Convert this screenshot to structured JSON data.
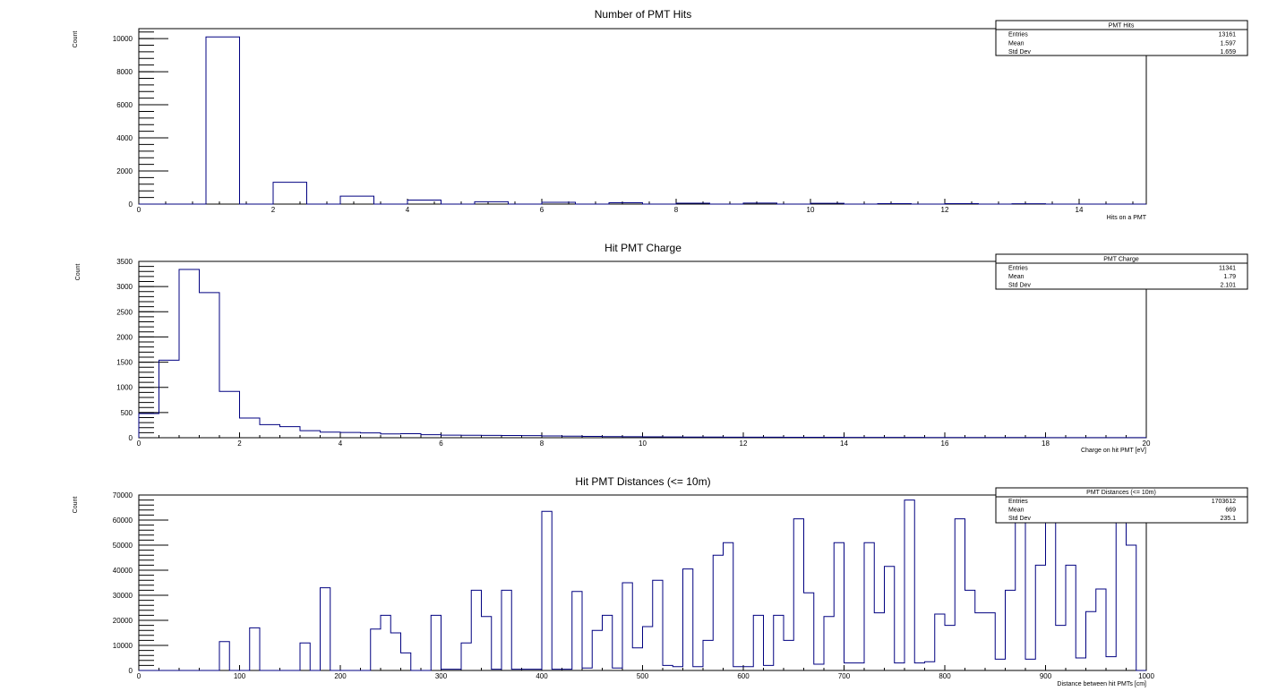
{
  "chart_data": [
    {
      "type": "histogram",
      "title": "Number of PMT Hits",
      "xlabel": "Hits on a PMT",
      "ylabel": "Count",
      "xlim": [
        0,
        15
      ],
      "ylim": [
        0,
        10600
      ],
      "xticks": [
        0,
        2,
        4,
        6,
        8,
        10,
        12,
        14
      ],
      "yticks": [
        0,
        2000,
        4000,
        6000,
        8000,
        10000
      ],
      "bin_width": 0.5,
      "x_start": 0,
      "values": [
        0,
        0,
        10100,
        0,
        1320,
        0,
        480,
        0,
        240,
        0,
        140,
        0,
        110,
        0,
        80,
        0,
        55,
        0,
        60,
        0,
        45,
        0,
        30,
        0,
        25,
        0,
        20,
        0,
        0,
        0
      ],
      "stats": {
        "name": "PMT Hits",
        "rows": [
          {
            "label": "Entries",
            "value": "13161"
          },
          {
            "label": "Mean",
            "value": "1.597"
          },
          {
            "label": "Std Dev",
            "value": "1.659"
          }
        ]
      }
    },
    {
      "type": "histogram",
      "title": "Hit PMT Charge",
      "xlabel": "Charge on hit PMT [eV]",
      "ylabel": "Count",
      "xlim": [
        0,
        20
      ],
      "ylim": [
        0,
        3500
      ],
      "xticks": [
        0,
        2,
        4,
        6,
        8,
        10,
        12,
        14,
        16,
        18,
        20
      ],
      "yticks": [
        0,
        500,
        1000,
        1500,
        2000,
        2500,
        3000,
        3500
      ],
      "bin_width": 0.4,
      "x_start": 0,
      "values": [
        480,
        1540,
        3340,
        2880,
        920,
        390,
        260,
        220,
        140,
        110,
        105,
        95,
        75,
        80,
        60,
        50,
        48,
        46,
        44,
        42,
        35,
        30,
        26,
        22,
        20,
        18,
        16,
        14,
        13,
        12,
        11,
        10,
        9,
        8,
        8,
        7,
        7,
        6,
        6,
        5,
        5,
        5,
        4,
        4,
        4,
        3,
        3,
        3,
        3,
        2
      ],
      "stats": {
        "name": "PMT Charge",
        "rows": [
          {
            "label": "Entries",
            "value": "11341"
          },
          {
            "label": "Mean",
            "value": "1.79"
          },
          {
            "label": "Std Dev",
            "value": "2.101"
          }
        ]
      }
    },
    {
      "type": "histogram",
      "title": "Hit PMT Distances (<= 10m)",
      "xlabel": "Distance between hit PMTs [cm]",
      "ylabel": "Count",
      "xlim": [
        0,
        1000
      ],
      "ylim": [
        0,
        70000
      ],
      "xticks": [
        0,
        100,
        200,
        300,
        400,
        500,
        600,
        700,
        800,
        900,
        1000
      ],
      "yticks": [
        0,
        10000,
        20000,
        30000,
        40000,
        50000,
        60000,
        70000
      ],
      "bin_width": 10,
      "x_start": 0,
      "values": [
        0,
        0,
        0,
        0,
        0,
        0,
        0,
        0,
        11500,
        0,
        0,
        17000,
        0,
        0,
        0,
        0,
        11000,
        0,
        33000,
        0,
        0,
        0,
        0,
        16500,
        22000,
        15000,
        7000,
        0,
        0,
        22000,
        500,
        500,
        11000,
        32000,
        21500,
        500,
        32000,
        500,
        500,
        500,
        63500,
        500,
        500,
        31500,
        1000,
        16000,
        22000,
        1000,
        35000,
        9000,
        17500,
        36000,
        2000,
        1500,
        40500,
        1500,
        12000,
        46000,
        51000,
        1500,
        1500,
        22000,
        2000,
        22000,
        12000,
        60500,
        31000,
        2500,
        21500,
        51000,
        3000,
        3000,
        51000,
        23000,
        41500,
        3000,
        68000,
        3000,
        3500,
        22500,
        18000,
        60500,
        32000,
        23000,
        23000,
        4500,
        32000,
        60500,
        4500,
        42000,
        59000,
        18000,
        42000,
        5000,
        23500,
        32500,
        5500,
        60500,
        50000,
        0
      ],
      "stats": {
        "name": "PMT Distances (<= 10m)",
        "rows": [
          {
            "label": "Entries",
            "value": "1703612"
          },
          {
            "label": "Mean",
            "value": "669"
          },
          {
            "label": "Std Dev",
            "value": "235.1"
          }
        ]
      }
    }
  ]
}
